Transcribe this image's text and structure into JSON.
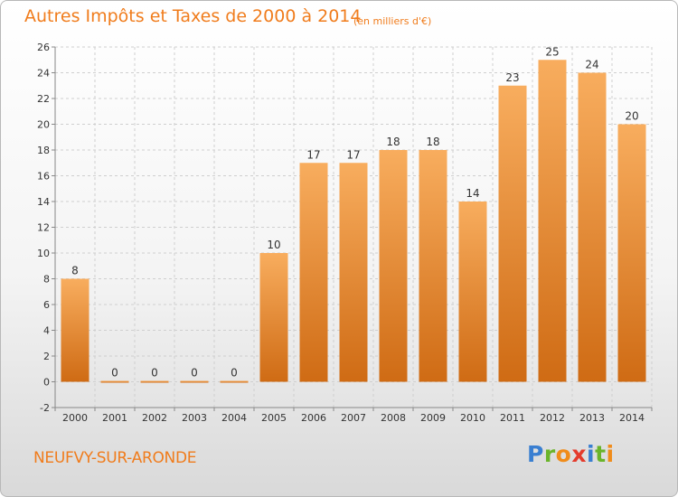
{
  "header": {
    "title": "Autres Impôts et Taxes de 2000 à 2014",
    "subtitle": "(en milliers d'€)"
  },
  "footer": {
    "place": "NEUFVY-SUR-ARONDE",
    "logo": {
      "text": "Proxiti",
      "letters": [
        "P",
        "r",
        "o",
        "x",
        "i",
        "t",
        "i"
      ],
      "colors": [
        "#3a7fd1",
        "#6ab42a",
        "#f08c1a",
        "#e43b2c",
        "#3a7fd1",
        "#6ab42a",
        "#f08c1a"
      ]
    }
  },
  "colors": {
    "accent": "#f07c1c",
    "bar_light": "#f8ad5e",
    "bar_dark": "#cf6b14",
    "grid": "#cfcfcf",
    "axis": "#888888"
  },
  "chart_data": {
    "type": "bar",
    "categories": [
      "2000",
      "2001",
      "2002",
      "2003",
      "2004",
      "2005",
      "2006",
      "2007",
      "2008",
      "2009",
      "2010",
      "2011",
      "2012",
      "2013",
      "2014"
    ],
    "values": [
      8,
      0,
      0,
      0,
      0,
      10,
      17,
      17,
      18,
      18,
      14,
      23,
      25,
      24,
      20
    ],
    "data_labels": [
      "8",
      "0",
      "0",
      "0",
      "0",
      "10",
      "17",
      "17",
      "18",
      "18",
      "14",
      "23",
      "25",
      "24",
      "20"
    ],
    "title": "Autres Impôts et Taxes de 2000 à 2014",
    "xlabel": "",
    "ylabel": "",
    "ylim": [
      -2,
      26
    ],
    "yticks": [
      -2,
      0,
      2,
      4,
      6,
      8,
      10,
      12,
      14,
      16,
      18,
      20,
      22,
      24,
      26
    ],
    "grid": true,
    "legend": "none"
  }
}
